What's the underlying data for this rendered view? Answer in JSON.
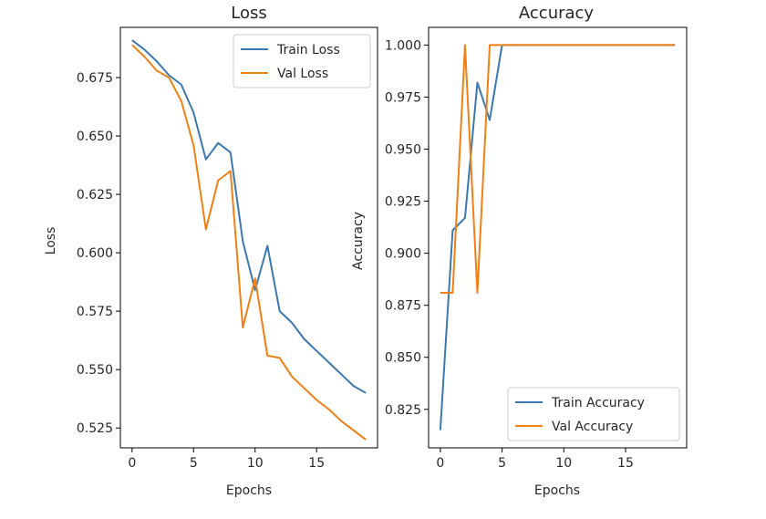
{
  "colors": {
    "train": "#3b78b0",
    "val": "#f07f14",
    "axis": "#000000"
  },
  "chart_data": [
    {
      "type": "line",
      "title": "Loss",
      "xlabel": "Epochs",
      "ylabel": "Loss",
      "xlim": [
        -0.95,
        19.95
      ],
      "ylim": [
        0.5165,
        0.6965
      ],
      "xticks": [
        0,
        5,
        10,
        15
      ],
      "xtick_labels": [
        "0",
        "5",
        "10",
        "15"
      ],
      "yticks": [
        0.525,
        0.55,
        0.575,
        0.6,
        0.625,
        0.65,
        0.675
      ],
      "ytick_labels": [
        "0.525",
        "0.550",
        "0.575",
        "0.600",
        "0.625",
        "0.650",
        "0.675"
      ],
      "legend_position": "upper right",
      "x": [
        0,
        1,
        2,
        3,
        4,
        5,
        6,
        7,
        8,
        9,
        10,
        11,
        12,
        13,
        14,
        15,
        16,
        17,
        18,
        19
      ],
      "series": [
        {
          "name": "Train Loss",
          "color_key": "train",
          "values": [
            0.691,
            0.687,
            0.682,
            0.676,
            0.672,
            0.66,
            0.64,
            0.647,
            0.643,
            0.605,
            0.584,
            0.603,
            0.575,
            0.57,
            0.563,
            0.558,
            0.553,
            0.548,
            0.543,
            0.54
          ]
        },
        {
          "name": "Val Loss",
          "color_key": "val",
          "values": [
            0.689,
            0.684,
            0.678,
            0.675,
            0.665,
            0.646,
            0.61,
            0.631,
            0.635,
            0.568,
            0.589,
            0.556,
            0.555,
            0.547,
            0.542,
            0.537,
            0.533,
            0.528,
            0.524,
            0.52
          ]
        }
      ]
    },
    {
      "type": "line",
      "title": "Accuracy",
      "xlabel": "Epochs",
      "ylabel": "Accuracy",
      "xlim": [
        -0.95,
        19.95
      ],
      "ylim": [
        0.8065,
        1.0085
      ],
      "xticks": [
        0,
        5,
        10,
        15
      ],
      "xtick_labels": [
        "0",
        "5",
        "10",
        "15"
      ],
      "yticks": [
        0.825,
        0.85,
        0.875,
        0.9,
        0.925,
        0.95,
        0.975,
        1.0
      ],
      "ytick_labels": [
        "0.825",
        "0.850",
        "0.875",
        "0.900",
        "0.925",
        "0.950",
        "0.975",
        "1.000"
      ],
      "legend_position": "lower right",
      "x": [
        0,
        1,
        2,
        3,
        4,
        5,
        6,
        7,
        8,
        9,
        10,
        11,
        12,
        13,
        14,
        15,
        16,
        17,
        18,
        19
      ],
      "series": [
        {
          "name": "Train Accuracy",
          "color_key": "train",
          "values": [
            0.815,
            0.911,
            0.917,
            0.982,
            0.964,
            1.0,
            1.0,
            1.0,
            1.0,
            1.0,
            1.0,
            1.0,
            1.0,
            1.0,
            1.0,
            1.0,
            1.0,
            1.0,
            1.0,
            1.0
          ]
        },
        {
          "name": "Val Accuracy",
          "color_key": "val",
          "values": [
            0.881,
            0.881,
            1.0,
            0.881,
            1.0,
            1.0,
            1.0,
            1.0,
            1.0,
            1.0,
            1.0,
            1.0,
            1.0,
            1.0,
            1.0,
            1.0,
            1.0,
            1.0,
            1.0,
            1.0
          ]
        }
      ]
    }
  ]
}
